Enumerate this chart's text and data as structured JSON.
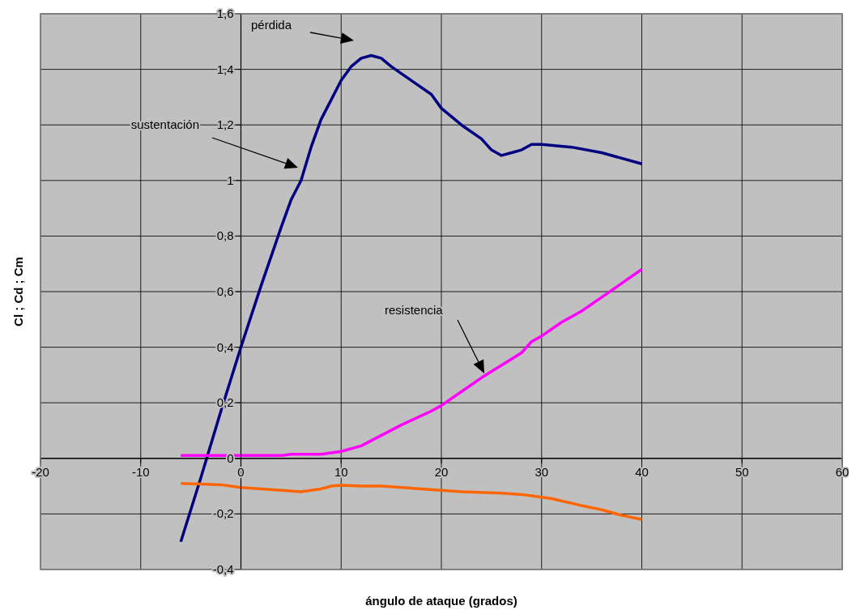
{
  "chart_data": {
    "type": "line",
    "xlabel": "ángulo de ataque (grados)",
    "ylabel": "Cl ; Cd ; Cm",
    "xlim": [
      -20,
      60
    ],
    "xticks": [
      -20,
      -10,
      0,
      10,
      20,
      30,
      40,
      50,
      60
    ],
    "ylim": [
      -0.4,
      1.6
    ],
    "yticks": [
      {
        "value": -0.4,
        "label": "-0,4"
      },
      {
        "value": -0.2,
        "label": "-0,2"
      },
      0,
      {
        "value": 0.2,
        "label": "0,2"
      },
      {
        "value": 0.4,
        "label": "0,4"
      },
      {
        "value": 0.6,
        "label": "0,6"
      },
      {
        "value": 0.8,
        "label": "0,8"
      },
      1,
      {
        "value": 1.2,
        "label": "1,2"
      },
      {
        "value": 1.4,
        "label": "1,4"
      },
      {
        "value": 1.6,
        "label": "1,6"
      }
    ],
    "grid": true,
    "legend": false,
    "marker": "none",
    "line_style": "solid",
    "series": [
      {
        "color": "#000080",
        "x": [
          -6,
          -4,
          -2,
          0,
          2,
          4,
          5,
          6,
          7,
          8,
          9,
          10,
          11,
          12,
          13,
          14,
          15,
          17,
          19,
          20,
          22,
          24,
          25,
          26,
          27,
          28,
          29,
          30,
          33,
          36,
          40
        ],
        "values": [
          -0.3,
          -0.07,
          0.17,
          0.4,
          0.62,
          0.83,
          0.93,
          1.0,
          1.12,
          1.22,
          1.29,
          1.36,
          1.41,
          1.44,
          1.45,
          1.44,
          1.41,
          1.36,
          1.31,
          1.26,
          1.2,
          1.15,
          1.11,
          1.09,
          1.1,
          1.11,
          1.13,
          1.13,
          1.12,
          1.1,
          1.06
        ]
      },
      {
        "color": "#ff00ff",
        "x": [
          -6,
          4,
          5,
          8,
          10,
          12,
          16,
          19,
          20,
          22,
          24,
          28,
          29,
          30,
          32,
          34,
          36,
          40
        ],
        "values": [
          0.01,
          0.01,
          0.015,
          0.015,
          0.025,
          0.045,
          0.12,
          0.17,
          0.19,
          0.24,
          0.29,
          0.38,
          0.42,
          0.44,
          0.49,
          0.53,
          0.58,
          0.68
        ]
      },
      {
        "color": "#ff6600",
        "x": [
          -6,
          -2,
          0,
          2,
          4,
          6,
          8,
          9,
          10,
          12,
          14,
          18,
          20,
          22,
          26,
          28,
          30,
          31,
          34,
          36,
          38,
          40
        ],
        "values": [
          -0.09,
          -0.095,
          -0.105,
          -0.11,
          -0.115,
          -0.12,
          -0.11,
          -0.1,
          -0.097,
          -0.1,
          -0.1,
          -0.11,
          -0.115,
          -0.12,
          -0.125,
          -0.13,
          -0.14,
          -0.145,
          -0.17,
          -0.185,
          -0.205,
          -0.22
        ]
      }
    ],
    "annotations": [
      "pérdida",
      "sustentación",
      "resistencia"
    ]
  }
}
